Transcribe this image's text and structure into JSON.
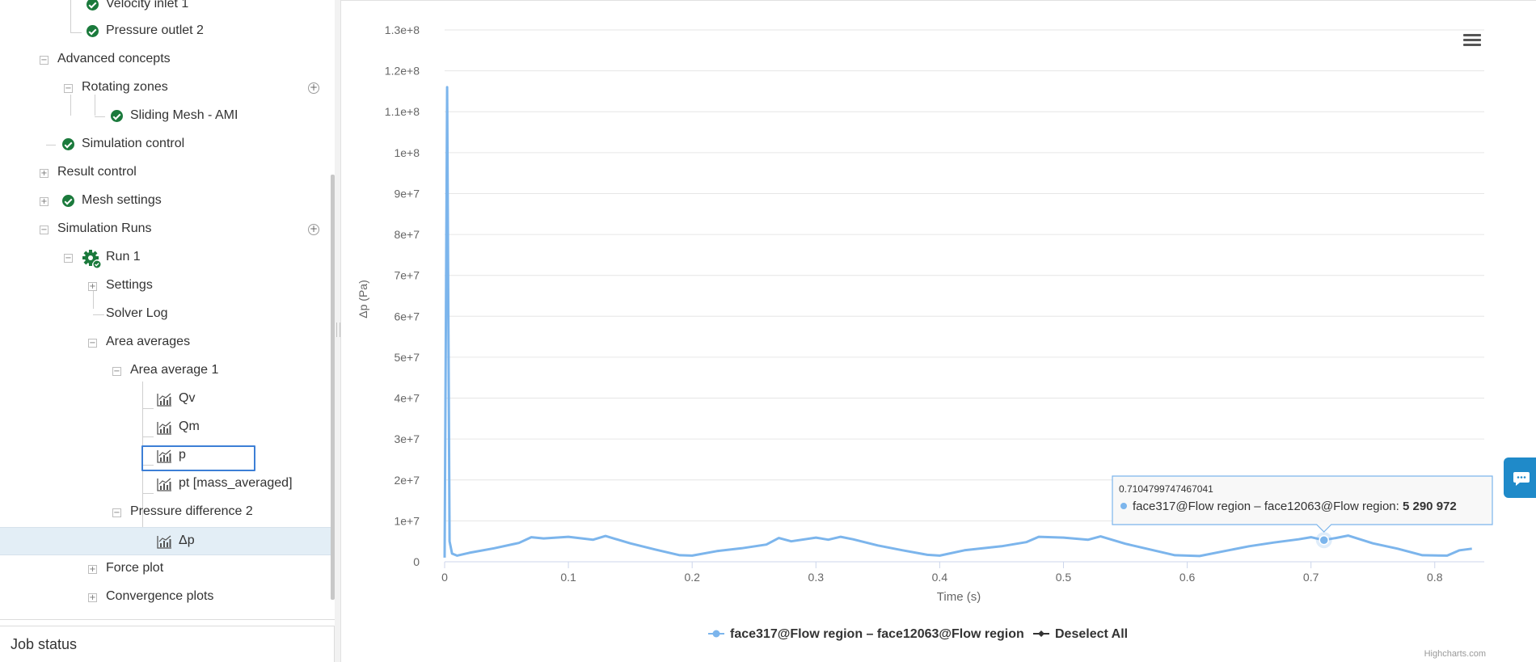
{
  "tree": {
    "items": [
      {
        "label": "Velocity inlet 1",
        "status": "ok"
      },
      {
        "label": "Pressure outlet 2",
        "status": "ok"
      },
      {
        "label": "Advanced concepts",
        "toggle": "−"
      },
      {
        "label": "Rotating zones",
        "toggle": "−",
        "add": "+"
      },
      {
        "label": "Sliding Mesh - AMI",
        "status": "ok"
      },
      {
        "label": "Simulation control",
        "status": "ok"
      },
      {
        "label": "Result control",
        "toggle": "+"
      },
      {
        "label": "Mesh settings",
        "toggle": "+",
        "status": "ok"
      },
      {
        "label": "Simulation Runs",
        "toggle": "−",
        "add": "+"
      },
      {
        "label": "Run 1",
        "toggle": "−",
        "status": "running-done"
      },
      {
        "label": "Settings",
        "toggle": "+"
      },
      {
        "label": "Solver Log"
      },
      {
        "label": "Area averages",
        "toggle": "−"
      },
      {
        "label": "Area average 1",
        "toggle": "−"
      },
      {
        "label": "Qv",
        "icon": "line-chart-icon"
      },
      {
        "label": "Qm",
        "icon": "line-chart-icon"
      },
      {
        "label": "p",
        "icon": "line-chart-icon",
        "focused": true
      },
      {
        "label": "pt [mass_averaged]",
        "icon": "line-chart-icon"
      },
      {
        "label": "Pressure difference 2",
        "toggle": "−"
      },
      {
        "label": "Δp",
        "icon": "line-chart-icon",
        "selected": true
      },
      {
        "label": "Force plot",
        "toggle": "+"
      },
      {
        "label": "Convergence plots",
        "toggle": "+"
      }
    ]
  },
  "job_status": {
    "title": "Job status"
  },
  "colors": {
    "series": "#7cb5ec",
    "check": "#1b7a3c",
    "accent": "#3d7fd6",
    "feedback": "#1f8ac9"
  },
  "chart_data": {
    "type": "line",
    "title": "",
    "xlabel": "Time (s)",
    "ylabel": "Δp (Pa)",
    "xlim": [
      0,
      0.84
    ],
    "ylim": [
      0,
      130000000
    ],
    "x_ticks": [
      0,
      0.1,
      0.2,
      0.3,
      0.4,
      0.5,
      0.6,
      0.7,
      0.8
    ],
    "x_tick_labels": [
      "0",
      "0.1",
      "0.2",
      "0.3",
      "0.4",
      "0.5",
      "0.6",
      "0.7",
      "0.8"
    ],
    "y_ticks": [
      0,
      10000000,
      20000000,
      30000000,
      40000000,
      50000000,
      60000000,
      70000000,
      80000000,
      90000000,
      100000000,
      110000000,
      120000000,
      130000000
    ],
    "y_tick_labels": [
      "0",
      "1e+7",
      "2e+7",
      "3e+7",
      "4e+7",
      "5e+7",
      "6e+7",
      "7e+7",
      "8e+7",
      "9e+7",
      "1e+8",
      "1.1e+8",
      "1.2e+8",
      "1.3e+8"
    ],
    "grid": true,
    "legend_position": "bottom",
    "series": [
      {
        "name": "face317@Flow region – face12063@Flow region",
        "x": [
          0,
          0.002,
          0.004,
          0.006,
          0.01,
          0.02,
          0.04,
          0.06,
          0.07,
          0.08,
          0.1,
          0.12,
          0.13,
          0.15,
          0.17,
          0.19,
          0.2,
          0.22,
          0.24,
          0.26,
          0.27,
          0.28,
          0.3,
          0.31,
          0.32,
          0.33,
          0.35,
          0.37,
          0.39,
          0.4,
          0.42,
          0.45,
          0.47,
          0.48,
          0.5,
          0.52,
          0.53,
          0.55,
          0.57,
          0.59,
          0.6,
          0.61,
          0.63,
          0.65,
          0.67,
          0.69,
          0.7,
          0.71,
          0.72,
          0.73,
          0.75,
          0.77,
          0.79,
          0.81,
          0.82,
          0.83
        ],
        "y": [
          1000000,
          116000000,
          5000000,
          2000000,
          1500000,
          2200000,
          3300000,
          4600000,
          6000000,
          5700000,
          6100000,
          5400000,
          6300000,
          4500000,
          3000000,
          1600000,
          1500000,
          2600000,
          3300000,
          4200000,
          5800000,
          5000000,
          5900000,
          5400000,
          6100000,
          5500000,
          4000000,
          2800000,
          1700000,
          1500000,
          2800000,
          3800000,
          4800000,
          6100000,
          5900000,
          5400000,
          6200000,
          4400000,
          3000000,
          1600000,
          1500000,
          1400000,
          2600000,
          3800000,
          4700000,
          5500000,
          6000000,
          5290972,
          5800000,
          6400000,
          4500000,
          3200000,
          1600000,
          1500000,
          2800000,
          3200000
        ]
      }
    ],
    "legend": {
      "series_label": "face317@Flow region – face12063@Flow region",
      "deselect_label": "Deselect All"
    },
    "tooltip": {
      "header": "0.7104799747467041",
      "series": "face317@Flow region – face12063@Flow region",
      "value": "5 290 972",
      "x": 0.7104799747467041,
      "y": 5290972
    },
    "credits": "Highcharts.com"
  }
}
